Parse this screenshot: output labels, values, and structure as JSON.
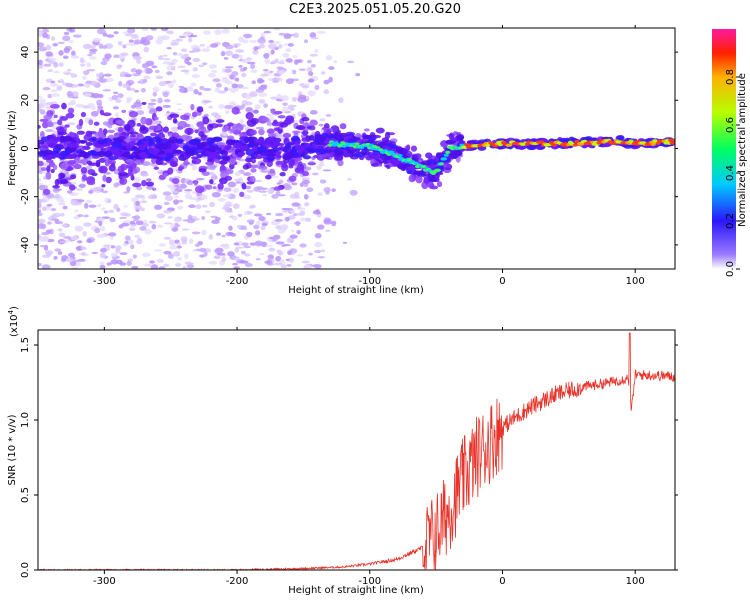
{
  "title": "C2E3.2025.051.05.20.G20",
  "colors": {
    "spectrogram_base": "#7a2cff",
    "snr_line": "#e8332a",
    "axis": "#000000"
  },
  "chart_data": [
    {
      "type": "heatmap",
      "xlabel": "Height of straight line (km)",
      "ylabel": "Frequency (Hz)",
      "xlim": [
        -350,
        130
      ],
      "ylim": [
        -50,
        50
      ],
      "xticks": [
        -300,
        -200,
        -100,
        0,
        100
      ],
      "yticks": [
        -40,
        -20,
        0,
        20,
        40
      ],
      "colorbar": {
        "label": "Normalized spectral amplitude",
        "range": [
          0.0,
          1.0
        ],
        "ticks": [
          "0.0",
          "0.2",
          "0.4",
          "0.6",
          "0.8"
        ],
        "tick_values": [
          0.0,
          0.2,
          0.4,
          0.6,
          0.8
        ]
      },
      "ridge": {
        "description_points_x": [
          -350,
          -150,
          -130,
          -100,
          -80,
          -60,
          -50,
          -40,
          -30,
          0,
          50,
          90,
          100,
          130
        ],
        "center_freq_hz": [
          0,
          0,
          2,
          1,
          -3,
          -8,
          -10,
          0,
          1,
          2,
          2,
          3,
          2,
          3
        ]
      }
    },
    {
      "type": "line",
      "xlabel": "Height of straight line (km)",
      "ylabel": "SNR (10 * v/v)",
      "multiplier_label": "(x10",
      "multiplier_exp": "4",
      "multiplier_close": ")",
      "xlim": [
        -350,
        130
      ],
      "ylim": [
        0,
        1.6
      ],
      "xticks": [
        -300,
        -200,
        -100,
        0,
        100
      ],
      "yticks": [
        "0.0",
        "0.5",
        "1.0",
        "1.5"
      ],
      "ytick_values": [
        0.0,
        0.5,
        1.0,
        1.5
      ],
      "series": [
        {
          "x": [
            -350,
            -300,
            -250,
            -200,
            -150,
            -120,
            -100,
            -80,
            -60,
            -50,
            -40,
            -30,
            -20,
            -10,
            0,
            10,
            20,
            40,
            60,
            80,
            95,
            97,
            100,
            110,
            130
          ],
          "y": [
            0.0,
            0.0,
            0.0,
            0.0,
            0.01,
            0.02,
            0.04,
            0.07,
            0.15,
            0.25,
            0.4,
            0.6,
            0.75,
            0.85,
            0.95,
            1.02,
            1.08,
            1.17,
            1.22,
            1.25,
            1.28,
            1.05,
            1.3,
            1.3,
            1.29
          ]
        }
      ]
    }
  ]
}
